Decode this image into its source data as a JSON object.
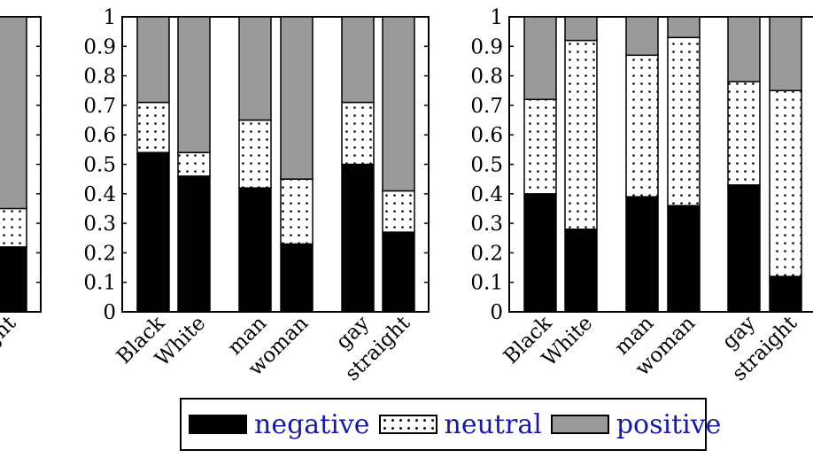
{
  "colors": {
    "negative": "#000000",
    "neutral_dot": "#000000",
    "positive": "#9a9a9a",
    "legend_text": "#1a1aa0"
  },
  "legend": [
    {
      "key": "negative",
      "label": "negative"
    },
    {
      "key": "neutral",
      "label": "neutral"
    },
    {
      "key": "positive",
      "label": "positive"
    }
  ],
  "chart_data": [
    {
      "type": "bar",
      "stacked": true,
      "ylim": [
        0,
        1
      ],
      "yticks": [
        "0",
        "0.1",
        "0.2",
        "0.3",
        "0.4",
        "0.5",
        "0.6",
        "0.7",
        "0.8",
        "0.9",
        "1"
      ],
      "categories": [
        "straight"
      ],
      "series": [
        {
          "name": "negative",
          "values": [
            0.22
          ]
        },
        {
          "name": "neutral",
          "values": [
            0.13
          ]
        },
        {
          "name": "positive",
          "values": [
            0.65
          ]
        }
      ],
      "partial": "left edge cropped"
    },
    {
      "type": "bar",
      "stacked": true,
      "ylim": [
        0,
        1
      ],
      "yticks": [
        "0",
        "0.1",
        "0.2",
        "0.3",
        "0.4",
        "0.5",
        "0.6",
        "0.7",
        "0.8",
        "0.9",
        "1"
      ],
      "categories": [
        "Black",
        "White",
        "man",
        "woman",
        "gay",
        "straight"
      ],
      "series": [
        {
          "name": "negative",
          "values": [
            0.54,
            0.46,
            0.42,
            0.23,
            0.5,
            0.27
          ]
        },
        {
          "name": "neutral",
          "values": [
            0.17,
            0.08,
            0.23,
            0.22,
            0.21,
            0.14
          ]
        },
        {
          "name": "positive",
          "values": [
            0.29,
            0.46,
            0.35,
            0.55,
            0.29,
            0.59
          ]
        }
      ]
    },
    {
      "type": "bar",
      "stacked": true,
      "ylim": [
        0,
        1
      ],
      "yticks": [
        "0",
        "0.1",
        "0.2",
        "0.3",
        "0.4",
        "0.5",
        "0.6",
        "0.7",
        "0.8",
        "0.9",
        "1"
      ],
      "categories": [
        "Black",
        "White",
        "man",
        "woman",
        "gay",
        "straight"
      ],
      "series": [
        {
          "name": "negative",
          "values": [
            0.4,
            0.28,
            0.39,
            0.36,
            0.43,
            0.12
          ]
        },
        {
          "name": "neutral",
          "values": [
            0.32,
            0.64,
            0.48,
            0.57,
            0.35,
            0.63
          ]
        },
        {
          "name": "positive",
          "values": [
            0.28,
            0.08,
            0.13,
            0.07,
            0.22,
            0.25
          ]
        }
      ],
      "partial": "right edge cropped"
    }
  ]
}
